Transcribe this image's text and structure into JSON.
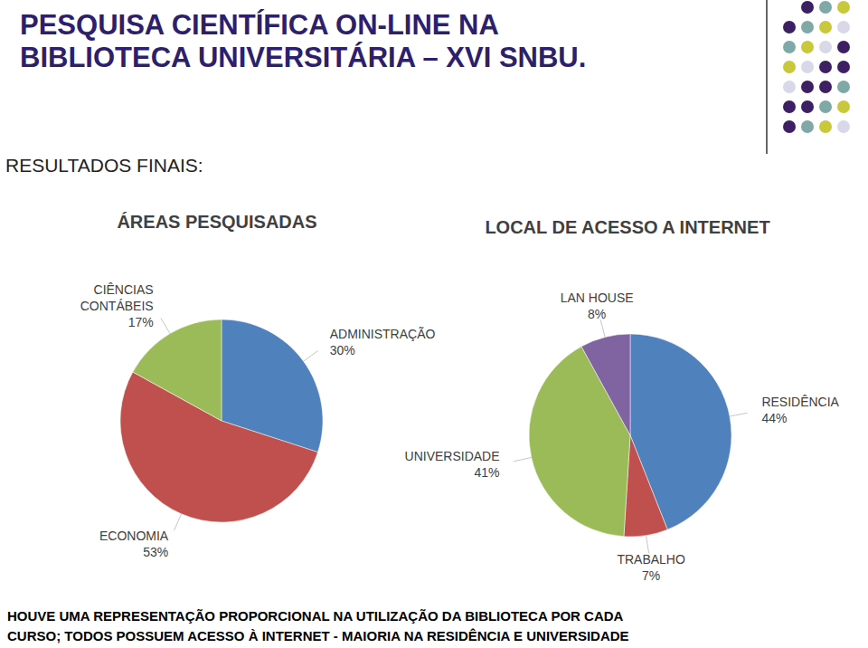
{
  "title": [
    "PESQUISA CIENTÍFICA ON-LINE NA",
    "BIBLIOTECA UNIVERSITÁRIA – XVI SNBU."
  ],
  "subtitle": "RESULTADOS FINAIS:",
  "footer": [
    "HOUVE UMA REPRESENTAÇÃO PROPORCIONAL NA UTILIZAÇÃO DA BIBLIOTECA POR CADA",
    "CURSO; TODOS POSSUEM ACESSO À INTERNET -  MAIORIA NA RESIDÊNCIA E UNIVERSIDADE"
  ],
  "chart_data": [
    {
      "type": "pie",
      "title": "ÁREAS PESQUISADAS",
      "categories": [
        "ADMINISTRAÇÃO",
        "ECONOMIA",
        "CIÊNCIAS CONTÁBEIS"
      ],
      "values": [
        30,
        53,
        17
      ],
      "value_labels": [
        "30%",
        "53%",
        "17%"
      ],
      "colors": [
        "#4f81bd",
        "#c0504d",
        "#9bbb59"
      ],
      "data_labels": true
    },
    {
      "type": "pie",
      "title": "LOCAL DE ACESSO A INTERNET",
      "categories": [
        "RESIDÊNCIA",
        "TRABALHO",
        "UNIVERSIDADE",
        "LAN HOUSE"
      ],
      "values": [
        44,
        7,
        41,
        8
      ],
      "value_labels": [
        "44%",
        "7%",
        "41%",
        "8%"
      ],
      "colors": [
        "#4f81bd",
        "#c0504d",
        "#9bbb59",
        "#8064a2"
      ],
      "data_labels": true
    }
  ]
}
